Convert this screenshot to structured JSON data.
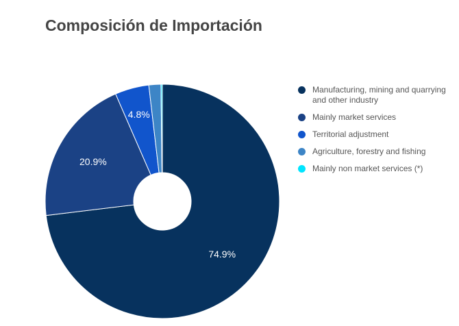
{
  "title": "Composición de Importación",
  "chart_data": {
    "type": "pie",
    "donut": true,
    "legend_position": "right",
    "slices": [
      {
        "label": "Manufacturing, mining and quarrying and other industry",
        "value": 74.9,
        "display": "74.9%",
        "color": "#07325E"
      },
      {
        "label": "Mainly market services",
        "value": 20.9,
        "display": "20.9%",
        "color": "#1B4285"
      },
      {
        "label": "Territorial adjustment",
        "value": 4.8,
        "display": "4.8%",
        "color": "#1155CC"
      },
      {
        "label": "Agriculture, forestry and fishing",
        "value": 1.7,
        "display": "",
        "color": "#3D85C6"
      },
      {
        "label": "Mainly non market services (*)",
        "value": 0.2,
        "display": "",
        "color": "#00E5FF"
      }
    ]
  }
}
